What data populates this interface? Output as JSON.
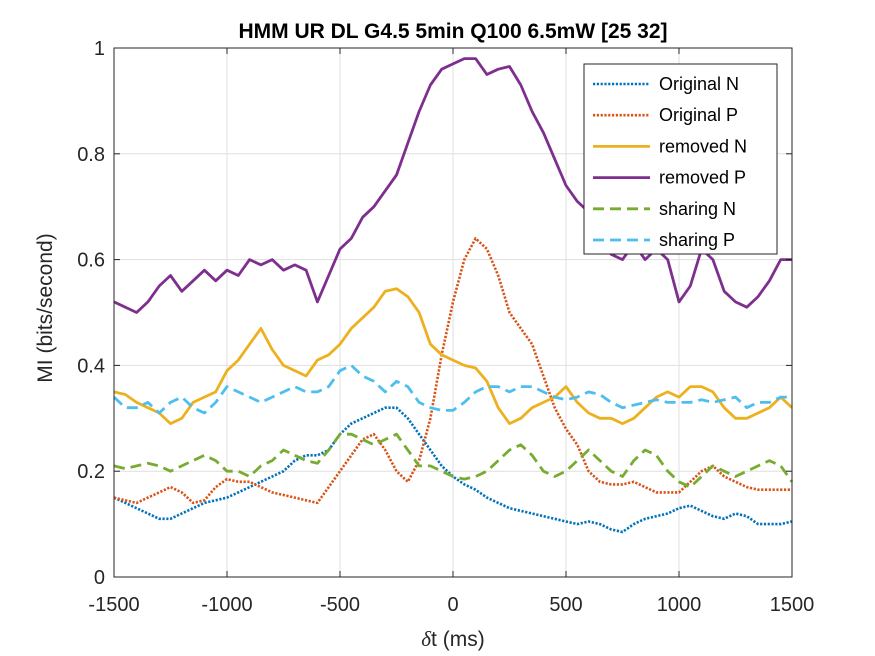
{
  "chart_data": {
    "type": "line",
    "title": "HMM UR DL G4.5 5min Q100 6.5mW [25  32]",
    "xlabel_symbol": "δ",
    "xlabel_rest": "t (ms)",
    "ylabel": "MI (bits/second)",
    "xlim": [
      -1500,
      1500
    ],
    "ylim": [
      0,
      1
    ],
    "xticks": [
      -1500,
      -1000,
      -500,
      0,
      500,
      1000,
      1500
    ],
    "xtick_labels": [
      "-1500",
      "-1000",
      "-500",
      "0",
      "500",
      "1000",
      "1500"
    ],
    "yticks": [
      0,
      0.2,
      0.4,
      0.6,
      0.8,
      1
    ],
    "ytick_labels": [
      "0",
      "0.2",
      "0.4",
      "0.6",
      "0.8",
      "1"
    ],
    "grid": true,
    "legend_position": "top-right",
    "series": [
      {
        "name": "Original N",
        "color": "#0072BD",
        "style": "dotted",
        "x": [
          -1500,
          -1450,
          -1400,
          -1350,
          -1300,
          -1250,
          -1200,
          -1150,
          -1100,
          -1050,
          -1000,
          -950,
          -900,
          -850,
          -800,
          -750,
          -700,
          -650,
          -600,
          -550,
          -500,
          -450,
          -400,
          -350,
          -300,
          -250,
          -200,
          -150,
          -100,
          -50,
          0,
          50,
          100,
          150,
          200,
          250,
          300,
          350,
          400,
          450,
          500,
          550,
          600,
          650,
          700,
          750,
          800,
          850,
          900,
          950,
          1000,
          1050,
          1100,
          1150,
          1200,
          1250,
          1300,
          1350,
          1400,
          1450,
          1500
        ],
        "y": [
          0.15,
          0.14,
          0.13,
          0.12,
          0.11,
          0.11,
          0.12,
          0.13,
          0.14,
          0.145,
          0.15,
          0.16,
          0.17,
          0.18,
          0.19,
          0.2,
          0.22,
          0.23,
          0.23,
          0.24,
          0.27,
          0.29,
          0.3,
          0.31,
          0.32,
          0.32,
          0.3,
          0.27,
          0.24,
          0.21,
          0.19,
          0.175,
          0.165,
          0.15,
          0.14,
          0.13,
          0.125,
          0.12,
          0.115,
          0.11,
          0.105,
          0.1,
          0.105,
          0.1,
          0.09,
          0.085,
          0.1,
          0.11,
          0.115,
          0.12,
          0.13,
          0.135,
          0.125,
          0.115,
          0.11,
          0.12,
          0.115,
          0.1,
          0.1,
          0.1,
          0.105
        ]
      },
      {
        "name": "Original P",
        "color": "#D95319",
        "style": "dotted",
        "x": [
          -1500,
          -1450,
          -1400,
          -1350,
          -1300,
          -1250,
          -1200,
          -1150,
          -1100,
          -1050,
          -1000,
          -950,
          -900,
          -850,
          -800,
          -750,
          -700,
          -650,
          -600,
          -550,
          -500,
          -450,
          -400,
          -350,
          -300,
          -250,
          -200,
          -150,
          -100,
          -50,
          0,
          50,
          100,
          150,
          200,
          250,
          300,
          350,
          400,
          450,
          500,
          550,
          600,
          650,
          700,
          750,
          800,
          850,
          900,
          950,
          1000,
          1050,
          1100,
          1150,
          1200,
          1250,
          1300,
          1350,
          1400,
          1450,
          1500
        ],
        "y": [
          0.15,
          0.145,
          0.14,
          0.15,
          0.16,
          0.17,
          0.16,
          0.14,
          0.145,
          0.17,
          0.185,
          0.18,
          0.18,
          0.17,
          0.16,
          0.155,
          0.15,
          0.145,
          0.14,
          0.17,
          0.2,
          0.23,
          0.26,
          0.27,
          0.24,
          0.2,
          0.18,
          0.22,
          0.3,
          0.42,
          0.52,
          0.6,
          0.64,
          0.62,
          0.57,
          0.5,
          0.47,
          0.44,
          0.38,
          0.32,
          0.28,
          0.25,
          0.2,
          0.18,
          0.175,
          0.175,
          0.18,
          0.17,
          0.16,
          0.16,
          0.16,
          0.18,
          0.2,
          0.21,
          0.19,
          0.18,
          0.17,
          0.165,
          0.165,
          0.165,
          0.165
        ]
      },
      {
        "name": "removed N",
        "color": "#EDB120",
        "style": "solid",
        "x": [
          -1500,
          -1450,
          -1400,
          -1350,
          -1300,
          -1250,
          -1200,
          -1150,
          -1100,
          -1050,
          -1000,
          -950,
          -900,
          -850,
          -800,
          -750,
          -700,
          -650,
          -600,
          -550,
          -500,
          -450,
          -400,
          -350,
          -300,
          -250,
          -200,
          -150,
          -100,
          -50,
          0,
          50,
          100,
          150,
          200,
          250,
          300,
          350,
          400,
          450,
          500,
          550,
          600,
          650,
          700,
          750,
          800,
          850,
          900,
          950,
          1000,
          1050,
          1100,
          1150,
          1200,
          1250,
          1300,
          1350,
          1400,
          1450,
          1500
        ],
        "y": [
          0.35,
          0.345,
          0.33,
          0.32,
          0.31,
          0.29,
          0.3,
          0.33,
          0.34,
          0.35,
          0.39,
          0.41,
          0.44,
          0.47,
          0.43,
          0.4,
          0.39,
          0.38,
          0.41,
          0.42,
          0.44,
          0.47,
          0.49,
          0.51,
          0.54,
          0.545,
          0.53,
          0.5,
          0.44,
          0.42,
          0.41,
          0.4,
          0.395,
          0.37,
          0.32,
          0.29,
          0.3,
          0.32,
          0.33,
          0.34,
          0.36,
          0.33,
          0.31,
          0.3,
          0.3,
          0.29,
          0.3,
          0.32,
          0.34,
          0.35,
          0.34,
          0.36,
          0.36,
          0.35,
          0.32,
          0.3,
          0.3,
          0.31,
          0.32,
          0.34,
          0.32
        ]
      },
      {
        "name": "removed P",
        "color": "#7E2F8E",
        "style": "solid",
        "x": [
          -1500,
          -1450,
          -1400,
          -1350,
          -1300,
          -1250,
          -1200,
          -1150,
          -1100,
          -1050,
          -1000,
          -950,
          -900,
          -850,
          -800,
          -750,
          -700,
          -650,
          -600,
          -550,
          -500,
          -450,
          -400,
          -350,
          -300,
          -250,
          -200,
          -150,
          -100,
          -50,
          0,
          50,
          100,
          150,
          200,
          250,
          300,
          350,
          400,
          450,
          500,
          550,
          600,
          650,
          700,
          750,
          800,
          850,
          900,
          950,
          1000,
          1050,
          1100,
          1150,
          1200,
          1250,
          1300,
          1350,
          1400,
          1450,
          1500
        ],
        "y": [
          0.52,
          0.51,
          0.5,
          0.52,
          0.55,
          0.57,
          0.54,
          0.56,
          0.58,
          0.56,
          0.58,
          0.57,
          0.6,
          0.59,
          0.6,
          0.58,
          0.59,
          0.58,
          0.52,
          0.57,
          0.62,
          0.64,
          0.68,
          0.7,
          0.73,
          0.76,
          0.82,
          0.88,
          0.93,
          0.96,
          0.97,
          0.98,
          0.98,
          0.95,
          0.96,
          0.965,
          0.93,
          0.88,
          0.84,
          0.79,
          0.74,
          0.71,
          0.69,
          0.65,
          0.61,
          0.6,
          0.63,
          0.6,
          0.62,
          0.6,
          0.52,
          0.55,
          0.62,
          0.6,
          0.54,
          0.52,
          0.51,
          0.53,
          0.56,
          0.6,
          0.6
        ]
      },
      {
        "name": "sharing N",
        "color": "#77AC30",
        "style": "dashed",
        "x": [
          -1500,
          -1450,
          -1400,
          -1350,
          -1300,
          -1250,
          -1200,
          -1150,
          -1100,
          -1050,
          -1000,
          -950,
          -900,
          -850,
          -800,
          -750,
          -700,
          -650,
          -600,
          -550,
          -500,
          -450,
          -400,
          -350,
          -300,
          -250,
          -200,
          -150,
          -100,
          -50,
          0,
          50,
          100,
          150,
          200,
          250,
          300,
          350,
          400,
          450,
          500,
          550,
          600,
          650,
          700,
          750,
          800,
          850,
          900,
          950,
          1000,
          1050,
          1100,
          1150,
          1200,
          1250,
          1300,
          1350,
          1400,
          1450,
          1500
        ],
        "y": [
          0.21,
          0.205,
          0.21,
          0.215,
          0.21,
          0.2,
          0.21,
          0.22,
          0.23,
          0.22,
          0.2,
          0.2,
          0.19,
          0.21,
          0.22,
          0.24,
          0.23,
          0.22,
          0.215,
          0.24,
          0.27,
          0.27,
          0.26,
          0.25,
          0.26,
          0.27,
          0.24,
          0.21,
          0.21,
          0.2,
          0.19,
          0.185,
          0.19,
          0.2,
          0.22,
          0.24,
          0.25,
          0.23,
          0.2,
          0.19,
          0.2,
          0.22,
          0.24,
          0.22,
          0.2,
          0.19,
          0.22,
          0.24,
          0.23,
          0.2,
          0.18,
          0.17,
          0.19,
          0.21,
          0.2,
          0.19,
          0.2,
          0.21,
          0.22,
          0.21,
          0.18
        ]
      },
      {
        "name": "sharing P",
        "color": "#4DBEEE",
        "style": "dashed",
        "x": [
          -1500,
          -1450,
          -1400,
          -1350,
          -1300,
          -1250,
          -1200,
          -1150,
          -1100,
          -1050,
          -1000,
          -950,
          -900,
          -850,
          -800,
          -750,
          -700,
          -650,
          -600,
          -550,
          -500,
          -450,
          -400,
          -350,
          -300,
          -250,
          -200,
          -150,
          -100,
          -50,
          0,
          50,
          100,
          150,
          200,
          250,
          300,
          350,
          400,
          450,
          500,
          550,
          600,
          650,
          700,
          750,
          800,
          850,
          900,
          950,
          1000,
          1050,
          1100,
          1150,
          1200,
          1250,
          1300,
          1350,
          1400,
          1450,
          1500
        ],
        "y": [
          0.34,
          0.32,
          0.32,
          0.33,
          0.31,
          0.33,
          0.34,
          0.32,
          0.31,
          0.33,
          0.36,
          0.35,
          0.34,
          0.33,
          0.34,
          0.35,
          0.36,
          0.35,
          0.35,
          0.36,
          0.39,
          0.4,
          0.38,
          0.37,
          0.35,
          0.37,
          0.36,
          0.33,
          0.32,
          0.315,
          0.315,
          0.33,
          0.35,
          0.36,
          0.36,
          0.35,
          0.36,
          0.36,
          0.35,
          0.34,
          0.335,
          0.34,
          0.35,
          0.345,
          0.33,
          0.32,
          0.325,
          0.33,
          0.335,
          0.33,
          0.33,
          0.33,
          0.335,
          0.33,
          0.335,
          0.34,
          0.32,
          0.33,
          0.33,
          0.34,
          0.34
        ]
      }
    ]
  }
}
